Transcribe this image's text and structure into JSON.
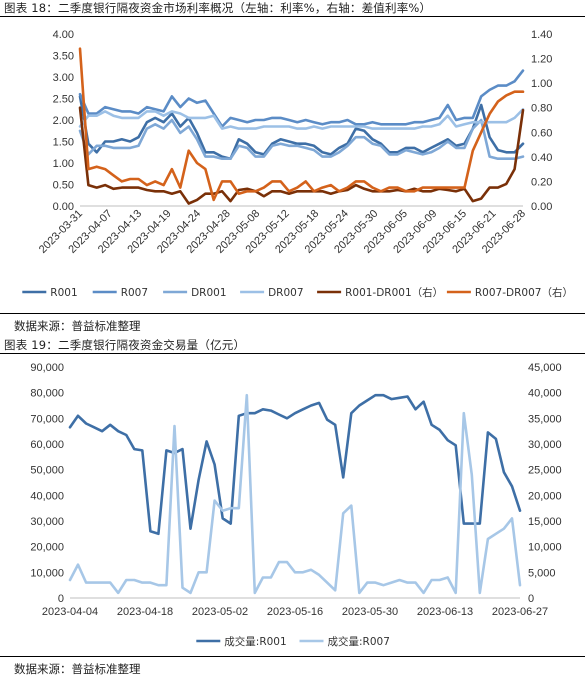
{
  "figures": [
    {
      "title": "图表 18：二季度银行隔夜资金市场利率概况（左轴：利率%，右轴：差值利率%）",
      "source": "数据来源：普益标准整理"
    },
    {
      "title": "图表 19：二季度银行隔夜资金交易量（亿元）",
      "source": "数据来源：普益标准整理"
    }
  ],
  "chart_data": [
    {
      "type": "line",
      "title": "图表 18：二季度银行隔夜资金市场利率概况（左轴：利率%，右轴：差值利率%）",
      "y_left_range": [
        0,
        4.0
      ],
      "y_right_range": [
        0,
        1.4
      ],
      "y_left_ticks": [
        "0.00",
        "0.50",
        "1.00",
        "1.50",
        "2.00",
        "2.50",
        "3.00",
        "3.50",
        "4.00"
      ],
      "y_right_ticks": [
        "0.00",
        "0.20",
        "0.40",
        "0.60",
        "0.80",
        "1.00",
        "1.20",
        "1.40"
      ],
      "x_tick_labels": [
        "2023-03-31",
        "2023-04-07",
        "2023-04-13",
        "2023-04-19",
        "2023-04-24",
        "2023-04-28",
        "2023-05-08",
        "2023-05-12",
        "2023-05-18",
        "2023-05-24",
        "2023-05-30",
        "2023-06-05",
        "2023-06-09",
        "2023-06-15",
        "2023-06-21",
        "2023-06-28"
      ],
      "legend_position": "bottom",
      "grid": false,
      "series": [
        {
          "name": "R001",
          "axis": "left",
          "color": "#3E6FA6",
          "values": [
            2.55,
            1.45,
            1.25,
            1.5,
            1.5,
            1.55,
            1.5,
            1.6,
            1.95,
            2.05,
            1.95,
            2.15,
            1.85,
            2.05,
            1.7,
            1.25,
            1.25,
            1.15,
            1.1,
            1.55,
            1.45,
            1.25,
            1.2,
            1.45,
            1.55,
            1.5,
            1.45,
            1.45,
            1.4,
            1.25,
            1.2,
            1.35,
            1.45,
            1.8,
            1.75,
            1.55,
            1.45,
            1.25,
            1.25,
            1.35,
            1.35,
            1.25,
            1.35,
            1.45,
            1.55,
            1.4,
            1.45,
            1.8,
            2.35,
            1.6,
            1.3,
            1.25,
            1.25,
            1.45
          ]
        },
        {
          "name": "R007",
          "axis": "left",
          "color": "#5B8CC6",
          "values": [
            2.6,
            2.15,
            2.15,
            2.3,
            2.25,
            2.2,
            2.2,
            2.15,
            2.3,
            2.25,
            2.2,
            2.55,
            2.3,
            2.5,
            2.4,
            2.45,
            2.15,
            1.85,
            2.05,
            2.0,
            1.95,
            2.0,
            2.0,
            2.05,
            2.05,
            2.0,
            1.95,
            2.0,
            1.95,
            1.9,
            1.95,
            1.95,
            2.0,
            1.9,
            1.9,
            1.95,
            1.9,
            1.9,
            1.9,
            1.9,
            1.95,
            1.95,
            2.0,
            2.05,
            2.35,
            2.0,
            2.05,
            2.05,
            2.55,
            2.7,
            2.8,
            2.8,
            2.9,
            3.15
          ]
        },
        {
          "name": "DR001",
          "axis": "left",
          "color": "#7FA8D6",
          "values": [
            1.75,
            1.2,
            1.4,
            1.4,
            1.35,
            1.35,
            1.35,
            1.4,
            1.8,
            1.9,
            1.8,
            2.0,
            1.7,
            1.85,
            1.55,
            1.15,
            1.15,
            1.1,
            1.1,
            1.4,
            1.35,
            1.15,
            1.15,
            1.4,
            1.45,
            1.4,
            1.4,
            1.35,
            1.3,
            1.15,
            1.15,
            1.25,
            1.4,
            1.6,
            1.6,
            1.45,
            1.4,
            1.2,
            1.2,
            1.3,
            1.25,
            1.2,
            1.25,
            1.35,
            1.5,
            1.35,
            1.35,
            1.8,
            2.0,
            1.15,
            1.1,
            1.1,
            1.1,
            1.15
          ]
        },
        {
          "name": "DR007",
          "axis": "left",
          "color": "#9CC0E6",
          "values": [
            1.85,
            2.1,
            2.1,
            2.2,
            2.1,
            2.05,
            2.05,
            2.05,
            2.2,
            2.2,
            2.1,
            2.2,
            2.15,
            2.05,
            2.05,
            2.05,
            2.1,
            1.8,
            1.85,
            1.8,
            1.8,
            1.8,
            1.85,
            1.85,
            1.85,
            1.85,
            1.8,
            1.8,
            1.85,
            1.8,
            1.85,
            1.85,
            1.85,
            1.85,
            1.85,
            1.8,
            1.8,
            1.8,
            1.8,
            1.8,
            1.8,
            1.85,
            1.85,
            1.9,
            2.1,
            1.85,
            1.9,
            1.95,
            1.95,
            1.95,
            1.95,
            1.95,
            2.05,
            2.25
          ]
        },
        {
          "name": "R001-DR001（右）",
          "axis": "right",
          "color": "#7A3008",
          "values": [
            0.8,
            0.17,
            0.15,
            0.17,
            0.14,
            0.15,
            0.15,
            0.15,
            0.13,
            0.12,
            0.12,
            0.1,
            0.12,
            0.02,
            0.05,
            0.1,
            0.1,
            0.12,
            0.04,
            0.13,
            0.14,
            0.12,
            0.08,
            0.12,
            0.12,
            0.1,
            0.12,
            0.12,
            0.12,
            0.12,
            0.1,
            0.12,
            0.13,
            0.17,
            0.14,
            0.12,
            0.12,
            0.12,
            0.13,
            0.12,
            0.14,
            0.12,
            0.12,
            0.14,
            0.13,
            0.12,
            0.14,
            0.04,
            0.06,
            0.15,
            0.15,
            0.18,
            0.3,
            0.78
          ]
        },
        {
          "name": "R007-DR007（右）",
          "axis": "right",
          "color": "#D4621B",
          "values": [
            1.28,
            0.3,
            0.32,
            0.3,
            0.25,
            0.2,
            0.22,
            0.22,
            0.17,
            0.2,
            0.17,
            0.3,
            0.15,
            0.45,
            0.35,
            0.3,
            0.05,
            0.2,
            0.2,
            0.1,
            0.12,
            0.12,
            0.15,
            0.2,
            0.2,
            0.12,
            0.15,
            0.2,
            0.12,
            0.15,
            0.17,
            0.12,
            0.15,
            0.2,
            0.2,
            0.15,
            0.12,
            0.15,
            0.15,
            0.12,
            0.12,
            0.15,
            0.15,
            0.15,
            0.15,
            0.15,
            0.15,
            0.45,
            0.6,
            0.75,
            0.85,
            0.9,
            0.93,
            0.93
          ]
        }
      ]
    },
    {
      "type": "line",
      "title": "图表 19：二季度银行隔夜资金交易量（亿元）",
      "y_left_range": [
        0,
        90000
      ],
      "y_right_range": [
        0,
        45000
      ],
      "y_left_ticks": [
        "0",
        "10,000",
        "20,000",
        "30,000",
        "40,000",
        "50,000",
        "60,000",
        "70,000",
        "80,000",
        "90,000"
      ],
      "y_right_ticks": [
        "0",
        "5,000",
        "10,000",
        "15,000",
        "20,000",
        "25,000",
        "30,000",
        "35,000",
        "40,000",
        "45,000"
      ],
      "x_tick_labels": [
        "2023-04-04",
        "2023-04-18",
        "2023-05-02",
        "2023-05-16",
        "2023-05-30",
        "2023-06-13",
        "2023-06-27"
      ],
      "legend_position": "bottom",
      "grid": false,
      "series": [
        {
          "name": "成交量:R001",
          "axis": "left",
          "color": "#3E6FA6",
          "values": [
            66500,
            71000,
            68000,
            66500,
            65000,
            67500,
            65000,
            63500,
            58000,
            57500,
            26000,
            25000,
            57500,
            56500,
            58000,
            27000,
            46000,
            61000,
            52000,
            31000,
            29000,
            71000,
            72000,
            72000,
            73500,
            73000,
            71500,
            70000,
            72000,
            73500,
            75000,
            76000,
            69500,
            67500,
            47000,
            72000,
            75000,
            77000,
            79000,
            79000,
            77500,
            78000,
            78500,
            73500,
            76500,
            67500,
            65500,
            61500,
            59500,
            29000,
            29000,
            29000,
            64500,
            62000,
            49000,
            43500,
            34000
          ]
        },
        {
          "name": "成交量:R007",
          "axis": "right",
          "color": "#A7C7E7",
          "values": [
            3500,
            6500,
            3000,
            3000,
            3000,
            3000,
            1000,
            3500,
            3500,
            3000,
            3000,
            2500,
            2500,
            33500,
            2000,
            1000,
            5000,
            5000,
            19000,
            17000,
            17500,
            17500,
            39500,
            1000,
            4000,
            4000,
            7000,
            7000,
            5000,
            5000,
            5500,
            4500,
            3000,
            1500,
            16500,
            18000,
            1000,
            3000,
            3000,
            2500,
            3000,
            3500,
            3000,
            3000,
            1000,
            3500,
            3500,
            4000,
            1000,
            36000,
            24000,
            1000,
            11500,
            12500,
            13500,
            15500,
            2500
          ]
        }
      ]
    }
  ]
}
